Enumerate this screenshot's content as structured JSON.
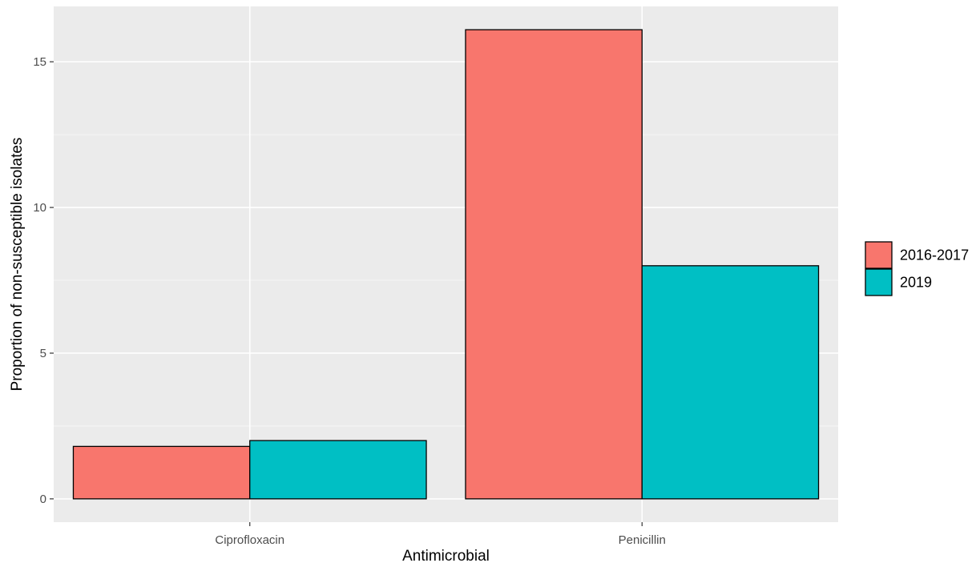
{
  "chart_data": {
    "type": "bar",
    "categories": [
      "Ciprofloxacin",
      "Penicillin"
    ],
    "series": [
      {
        "name": "2016-2017",
        "values": [
          1.8,
          16.1
        ],
        "color": "#F8766D"
      },
      {
        "name": "2019",
        "values": [
          2.0,
          8.0
        ],
        "color": "#00BFC4"
      }
    ],
    "xlabel": "Antimicrobial",
    "ylabel": "Proportion of non-susceptible isolates",
    "ylim": [
      -0.8,
      16.9
    ],
    "yticks": [
      0,
      5,
      10,
      15
    ],
    "ytick_labels": [
      "0",
      "5",
      "10",
      "15"
    ],
    "grid": true,
    "legend_position": "right",
    "panel_background": "#EBEBEB",
    "gridline_color": "#FFFFFF"
  }
}
